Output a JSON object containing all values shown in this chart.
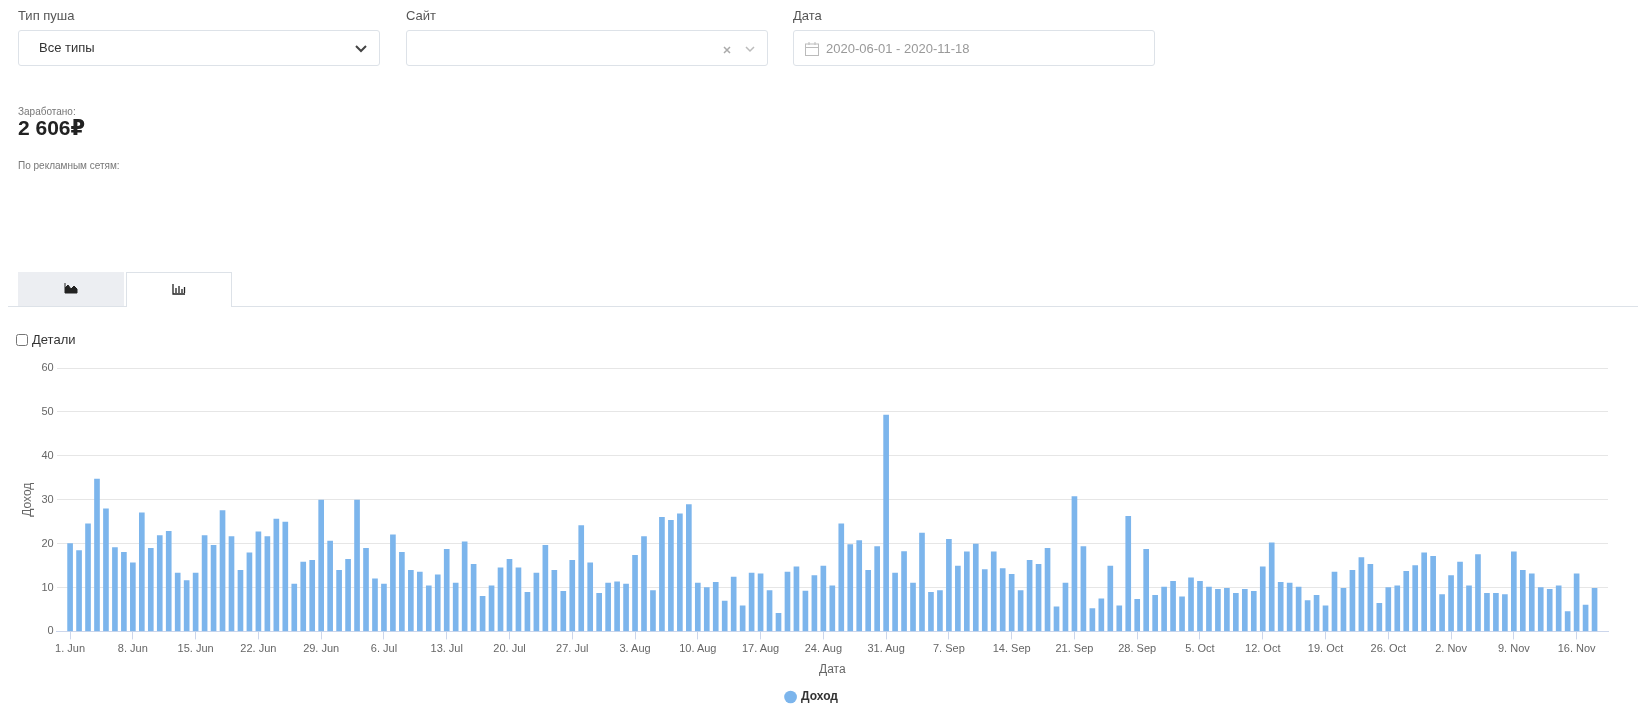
{
  "chart_data": {
    "type": "bar",
    "xlabel": "Дата",
    "ylabel": "Доход",
    "annotations": [
      "Тип пуша",
      "Все типы",
      "Сайт",
      "Дата",
      "2020-06-01 - 2020-11-18",
      "Заработано:",
      "2 606₽",
      "По рекламным сетям:",
      "Детали"
    ],
    "x": [
      "2020-06-01",
      "2020-06-02",
      "2020-06-03",
      "2020-06-04",
      "2020-06-05",
      "2020-06-06",
      "2020-06-07",
      "2020-06-08",
      "2020-06-09",
      "2020-06-10",
      "2020-06-11",
      "2020-06-12",
      "2020-06-13",
      "2020-06-14",
      "2020-06-15",
      "2020-06-16",
      "2020-06-17",
      "2020-06-18",
      "2020-06-19",
      "2020-06-20",
      "2020-06-21",
      "2020-06-22",
      "2020-06-23",
      "2020-06-24",
      "2020-06-25",
      "2020-06-26",
      "2020-06-27",
      "2020-06-28",
      "2020-06-29",
      "2020-06-30",
      "2020-07-01",
      "2020-07-02",
      "2020-07-03",
      "2020-07-04",
      "2020-07-05",
      "2020-07-06",
      "2020-07-07",
      "2020-07-08",
      "2020-07-09",
      "2020-07-10",
      "2020-07-11",
      "2020-07-12",
      "2020-07-13",
      "2020-07-14",
      "2020-07-15",
      "2020-07-16",
      "2020-07-17",
      "2020-07-18",
      "2020-07-19",
      "2020-07-20",
      "2020-07-21",
      "2020-07-22",
      "2020-07-23",
      "2020-07-24",
      "2020-07-25",
      "2020-07-26",
      "2020-07-27",
      "2020-07-28",
      "2020-07-29",
      "2020-07-30",
      "2020-07-31",
      "2020-08-01",
      "2020-08-02",
      "2020-08-03",
      "2020-08-04",
      "2020-08-05",
      "2020-08-06",
      "2020-08-07",
      "2020-08-08",
      "2020-08-09",
      "2020-08-10",
      "2020-08-11",
      "2020-08-12",
      "2020-08-13",
      "2020-08-14",
      "2020-08-15",
      "2020-08-16",
      "2020-08-17",
      "2020-08-18",
      "2020-08-19",
      "2020-08-20",
      "2020-08-21",
      "2020-08-22",
      "2020-08-23",
      "2020-08-24",
      "2020-08-25",
      "2020-08-26",
      "2020-08-27",
      "2020-08-28",
      "2020-08-29",
      "2020-08-30",
      "2020-08-31",
      "2020-09-01",
      "2020-09-02",
      "2020-09-03",
      "2020-09-04",
      "2020-09-05",
      "2020-09-06",
      "2020-09-07",
      "2020-09-08",
      "2020-09-09",
      "2020-09-10",
      "2020-09-11",
      "2020-09-12",
      "2020-09-13",
      "2020-09-14",
      "2020-09-15",
      "2020-09-16",
      "2020-09-17",
      "2020-09-18",
      "2020-09-19",
      "2020-09-20",
      "2020-09-21",
      "2020-09-22",
      "2020-09-23",
      "2020-09-24",
      "2020-09-25",
      "2020-09-26",
      "2020-09-27",
      "2020-09-28",
      "2020-09-29",
      "2020-09-30",
      "2020-10-01",
      "2020-10-02",
      "2020-10-03",
      "2020-10-04",
      "2020-10-05",
      "2020-10-06",
      "2020-10-07",
      "2020-10-08",
      "2020-10-09",
      "2020-10-10",
      "2020-10-11",
      "2020-10-12",
      "2020-10-13",
      "2020-10-14",
      "2020-10-15",
      "2020-10-16",
      "2020-10-17",
      "2020-10-18",
      "2020-10-19",
      "2020-10-20",
      "2020-10-21",
      "2020-10-22",
      "2020-10-23",
      "2020-10-24",
      "2020-10-25",
      "2020-10-26",
      "2020-10-27",
      "2020-10-28",
      "2020-10-29",
      "2020-10-30",
      "2020-10-31",
      "2020-11-01",
      "2020-11-02",
      "2020-11-03",
      "2020-11-04",
      "2020-11-05",
      "2020-11-06",
      "2020-11-07",
      "2020-11-08",
      "2020-11-09",
      "2020-11-10",
      "2020-11-11",
      "2020-11-12",
      "2020-11-13",
      "2020-11-14",
      "2020-11-15",
      "2020-11-16",
      "2020-11-17",
      "2020-11-18"
    ],
    "series": [
      {
        "name": "Доход",
        "color": "#7cb5ec",
        "values": [
          20,
          18.4,
          24.5,
          34.7,
          27.9,
          19.1,
          18.0,
          15.6,
          27.0,
          18.9,
          21.8,
          22.8,
          13.3,
          11.6,
          13.3,
          21.8,
          19.6,
          27.5,
          21.6,
          13.9,
          17.9,
          22.7,
          21.6,
          25.6,
          24.9,
          10.8,
          15.8,
          16.2,
          29.9,
          20.6,
          13.9,
          16.4,
          29.9,
          18.9,
          12.0,
          10.8,
          22.0,
          18.0,
          13.9,
          13.5,
          10.4,
          12.9,
          18.7,
          11.0,
          20.4,
          15.3,
          8.0,
          10.4,
          14.5,
          16.4,
          14.5,
          8.9,
          13.3,
          19.6,
          13.9,
          9.1,
          16.2,
          24.1,
          15.6,
          8.7,
          11.0,
          11.3,
          10.8,
          17.3,
          21.6,
          9.3,
          26.0,
          25.3,
          26.8,
          28.9,
          11.0,
          10.0,
          11.2,
          6.9,
          12.4,
          5.8,
          13.3,
          13.1,
          9.3,
          4.1,
          13.5,
          14.7,
          9.2,
          12.7,
          14.9,
          10.4,
          24.5,
          19.8,
          20.7,
          13.9,
          19.3,
          49.3,
          13.3,
          18.2,
          11.0,
          22.4,
          8.9,
          9.3,
          21.0,
          14.9,
          18.1,
          19.9,
          14.1,
          18.1,
          14.3,
          13.0,
          9.3,
          16.2,
          15.3,
          18.9,
          5.6,
          11.0,
          30.7,
          19.3,
          5.2,
          7.4,
          14.9,
          5.8,
          26.2,
          7.3,
          18.7,
          8.2,
          10.1,
          11.4,
          7.9,
          12.2,
          11.4,
          10.1,
          9.6,
          9.8,
          8.7,
          9.6,
          9.1,
          14.7,
          20.2,
          11.2,
          11.0,
          10.1,
          7.0,
          8.2,
          5.8,
          13.5,
          9.8,
          13.9,
          16.8,
          15.3,
          6.4,
          10.0,
          10.4,
          13.7,
          15.0,
          17.9,
          17.1,
          8.4,
          12.7,
          15.8,
          10.4,
          17.5,
          8.7,
          8.7,
          8.4,
          18.1,
          13.9,
          13.1,
          10.0,
          9.6,
          10.4,
          4.5,
          13.1,
          6.0,
          9.8
        ]
      }
    ],
    "xlim": [
      "2020-05-30T12:00",
      "2020-11-19T12:00"
    ],
    "xticks": [
      {
        "value": "2020-06-01",
        "label": "1. Jun"
      },
      {
        "value": "2020-06-08",
        "label": "8. Jun"
      },
      {
        "value": "2020-06-15",
        "label": "15. Jun"
      },
      {
        "value": "2020-06-22",
        "label": "22. Jun"
      },
      {
        "value": "2020-06-29",
        "label": "29. Jun"
      },
      {
        "value": "2020-07-06",
        "label": "6. Jul"
      },
      {
        "value": "2020-07-13",
        "label": "13. Jul"
      },
      {
        "value": "2020-07-20",
        "label": "20. Jul"
      },
      {
        "value": "2020-07-27",
        "label": "27. Jul"
      },
      {
        "value": "2020-08-03",
        "label": "3. Aug"
      },
      {
        "value": "2020-08-10",
        "label": "10. Aug"
      },
      {
        "value": "2020-08-17",
        "label": "17. Aug"
      },
      {
        "value": "2020-08-24",
        "label": "24. Aug"
      },
      {
        "value": "2020-08-31",
        "label": "31. Aug"
      },
      {
        "value": "2020-09-07",
        "label": "7. Sep"
      },
      {
        "value": "2020-09-14",
        "label": "14. Sep"
      },
      {
        "value": "2020-09-21",
        "label": "21. Sep"
      },
      {
        "value": "2020-09-28",
        "label": "28. Sep"
      },
      {
        "value": "2020-10-05",
        "label": "5. Oct"
      },
      {
        "value": "2020-10-12",
        "label": "12. Oct"
      },
      {
        "value": "2020-10-19",
        "label": "19. Oct"
      },
      {
        "value": "2020-10-26",
        "label": "26. Oct"
      },
      {
        "value": "2020-11-02",
        "label": "2. Nov"
      },
      {
        "value": "2020-11-09",
        "label": "9. Nov"
      },
      {
        "value": "2020-11-16",
        "label": "16. Nov"
      }
    ],
    "ylim": [
      0,
      60
    ],
    "yticks": [
      0,
      10,
      20,
      30,
      40,
      50,
      60
    ],
    "grid": "y",
    "legend": "bottom"
  }
}
